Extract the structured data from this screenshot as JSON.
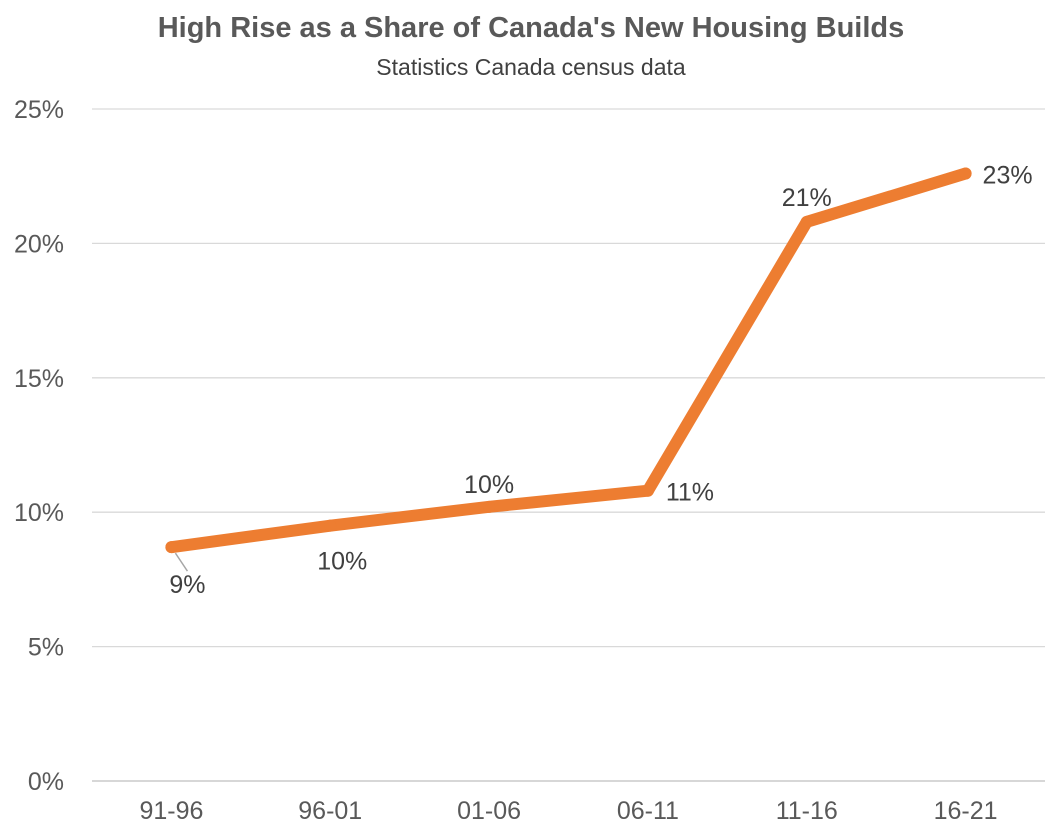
{
  "chart_data": {
    "type": "line",
    "title": "High Rise as a Share of Canada's New Housing Builds",
    "subtitle": "Statistics Canada census data",
    "xlabel": "",
    "ylabel": "",
    "categories": [
      "91-96",
      "96-01",
      "01-06",
      "06-11",
      "11-16",
      "16-21"
    ],
    "series": [
      {
        "values": [
          0.087,
          0.095,
          0.102,
          0.108,
          0.208,
          0.226
        ],
        "data_labels": [
          "9%",
          "10%",
          "10%",
          "11%",
          "21%",
          "23%"
        ],
        "color": "#ED7D31"
      }
    ],
    "yticks": [
      0,
      0.05,
      0.1,
      0.15,
      0.2,
      0.25
    ],
    "ytick_labels": [
      "0%",
      "5%",
      "10%",
      "15%",
      "20%",
      "25%"
    ],
    "ylim": [
      0,
      0.25
    ],
    "grid": true,
    "legend": "none"
  }
}
